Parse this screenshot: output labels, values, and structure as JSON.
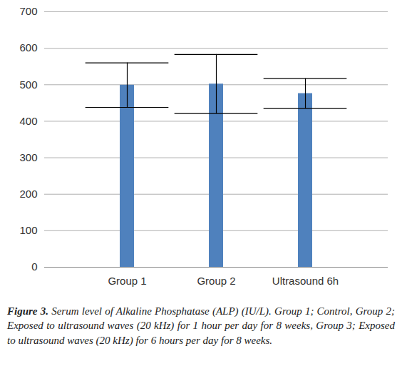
{
  "chart_data": {
    "type": "bar",
    "categories": [
      "Group 1",
      "Group 2",
      "Ultrasound 6h"
    ],
    "values": [
      499,
      502,
      476
    ],
    "errors": [
      61,
      81,
      41
    ],
    "color": "#4f81bd",
    "ylim": [
      0,
      700
    ],
    "yticks": [
      0,
      100,
      200,
      300,
      400,
      500,
      600,
      700
    ],
    "grid": true,
    "caption": {
      "label": "Figure 3.",
      "text": "Serum level of Alkaline Phosphatase (ALP) (IU/L). Group 1; Control, Group 2; Exposed to ultrasound waves (20 kHz) for 1 hour per day for 8 weeks, Group 3; Exposed to ultrasound waves (20 kHz) for 6 hours per day for 8 weeks."
    }
  }
}
